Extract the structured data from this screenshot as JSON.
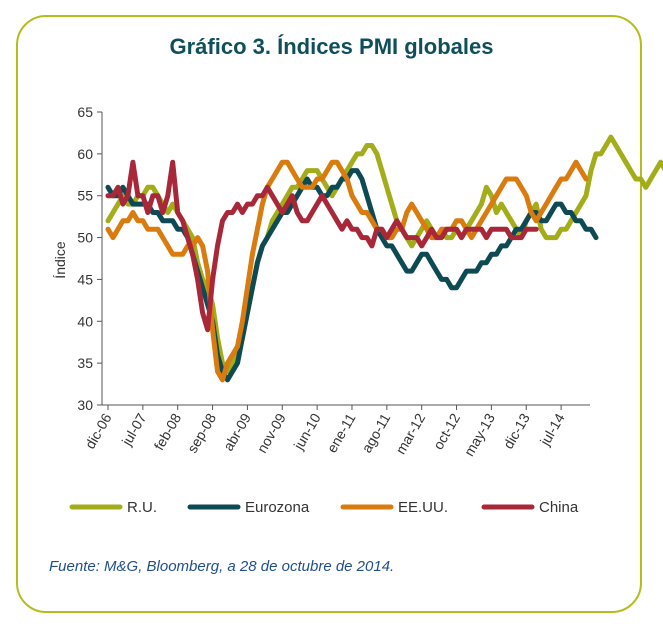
{
  "title": "Gráfico 3. Índices PMI globales",
  "source": "Fuente: M&G, Bloomberg, a 28 de octubre de 2014.",
  "chart_data": {
    "type": "line",
    "title": "Gráfico 3. Índices PMI globales",
    "xlabel": "",
    "ylabel": "Índice",
    "ylim": [
      30,
      65
    ],
    "yticks": [
      30,
      35,
      40,
      45,
      50,
      55,
      60,
      65
    ],
    "xticks": [
      "dic-06",
      "jul-07",
      "feb-08",
      "sep-08",
      "abr-09",
      "nov-09",
      "jun-10",
      "ene-11",
      "ago-11",
      "mar-12",
      "oct-12",
      "may-13",
      "dic-13",
      "jul-14"
    ],
    "x_start": "2006-12",
    "grid": false,
    "legend": "bottom",
    "series": [
      {
        "name": "R.U.",
        "color": "#a3ad1a",
        "values": [
          52,
          53,
          54,
          55,
          54,
          54,
          55,
          55,
          56,
          56,
          55,
          54,
          53,
          54,
          53,
          52,
          51,
          50,
          47,
          45,
          44,
          42,
          38,
          35,
          34,
          35,
          36,
          38,
          41,
          44,
          47,
          49,
          50,
          52,
          53,
          54,
          55,
          56,
          56,
          57,
          58,
          58,
          58,
          57,
          56,
          55,
          56,
          57,
          58,
          59,
          60,
          60,
          61,
          61,
          60,
          58,
          56,
          54,
          52,
          51,
          50,
          49,
          50,
          51,
          52,
          51,
          50,
          51,
          50,
          50,
          51,
          50,
          51,
          52,
          53,
          54,
          56,
          55,
          53,
          54,
          53,
          52,
          51,
          50,
          52,
          53,
          54,
          51,
          50,
          50,
          50,
          51,
          51,
          52,
          53,
          54,
          55,
          58,
          60,
          60,
          61,
          62,
          61,
          60,
          59,
          58,
          57,
          57,
          56,
          57,
          58,
          59,
          58,
          59,
          60,
          59
        ],
        "description": "values estimated monthly from dic-06"
      },
      {
        "name": "Eurozona",
        "color": "#0e4a54",
        "values": [
          56,
          55,
          55,
          56,
          55,
          54,
          54,
          54,
          54,
          53,
          53,
          52,
          52,
          52,
          51,
          51,
          50,
          48,
          46,
          44,
          42,
          40,
          36,
          34,
          33,
          34,
          35,
          38,
          41,
          44,
          47,
          49,
          50,
          51,
          52,
          53,
          53,
          54,
          55,
          56,
          57,
          56,
          56,
          55,
          55,
          56,
          56,
          57,
          57,
          58,
          58,
          57,
          55,
          53,
          51,
          50,
          49,
          49,
          48,
          47,
          46,
          46,
          47,
          48,
          48,
          47,
          46,
          45,
          45,
          44,
          44,
          45,
          46,
          46,
          46,
          47,
          47,
          48,
          48,
          49,
          49,
          50,
          51,
          51,
          52,
          53,
          53,
          52,
          52,
          53,
          54,
          54,
          53,
          53,
          52,
          52,
          51,
          51,
          50
        ],
        "description": "values estimated monthly from dic-06"
      },
      {
        "name": "EE.UU.",
        "color": "#d97b0f",
        "values": [
          51,
          50,
          51,
          52,
          52,
          53,
          52,
          52,
          51,
          51,
          51,
          50,
          49,
          48,
          48,
          48,
          49,
          49,
          50,
          49,
          46,
          39,
          34,
          33,
          35,
          36,
          37,
          40,
          44,
          48,
          51,
          54,
          56,
          57,
          58,
          59,
          59,
          58,
          57,
          56,
          56,
          56,
          57,
          57,
          58,
          59,
          59,
          58,
          57,
          55,
          54,
          53,
          53,
          52,
          51,
          51,
          50,
          50,
          51,
          51,
          53,
          54,
          53,
          52,
          51,
          50,
          50,
          51,
          51,
          51,
          52,
          52,
          51,
          50,
          51,
          52,
          53,
          54,
          55,
          56,
          57,
          57,
          57,
          56,
          55,
          53,
          52,
          53,
          54,
          55,
          56,
          57,
          57,
          58,
          59,
          58,
          57
        ],
        "description": "values estimated monthly from dic-06"
      },
      {
        "name": "China",
        "color": "#a8283a",
        "values": [
          55,
          55,
          56,
          54,
          55,
          59,
          55,
          55,
          53,
          55,
          55,
          53,
          55,
          59,
          53,
          52,
          50,
          48,
          45,
          41,
          39,
          45,
          49,
          52,
          53,
          53,
          54,
          53,
          54,
          54,
          55,
          55,
          56,
          55,
          54,
          53,
          54,
          55,
          53,
          52,
          52,
          53,
          54,
          55,
          54,
          53,
          52,
          51,
          52,
          51,
          51,
          50,
          50,
          49,
          51,
          51,
          50,
          51,
          52,
          51,
          50,
          50,
          50,
          49,
          50,
          51,
          50,
          50,
          51,
          51,
          51,
          50,
          51,
          51,
          51,
          51,
          50,
          51,
          51,
          51,
          51,
          50,
          50,
          50,
          51,
          51,
          51
        ],
        "description": "values estimated monthly from dic-06"
      }
    ]
  }
}
